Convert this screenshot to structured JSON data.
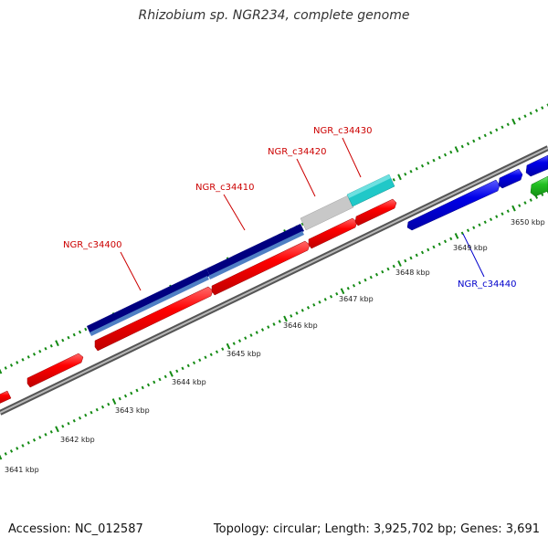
{
  "title": "Rhizobium sp. NGR234, complete genome",
  "footer": {
    "accession": "Accession: NC_012587",
    "stats": "Topology: circular; Length: 3,925,702 bp; Genes: 3,691"
  },
  "gene_labels": {
    "c34400": "NGR_c34400",
    "c34410": "NGR_c34410",
    "c34420": "NGR_c34420",
    "c34430": "NGR_c34430",
    "c34440": "NGR_c34440"
  },
  "ruler": [
    "3641 kbp",
    "3642 kbp",
    "3643 kbp",
    "3644 kbp",
    "3645 kbp",
    "3646 kbp",
    "3647 kbp",
    "3648 kbp",
    "3649 kbp",
    "3650 kbp"
  ],
  "colors": {
    "forward_gene": "#ff0000",
    "reverse_gene": "#0000e0",
    "selected_gene": "#000080",
    "selected_gene_inner": "#4f7fc4",
    "grey_gene": "#c8c8c8",
    "cyan_gene": "#20c8c8",
    "green_gene": "#22c022",
    "tick": "#138a13",
    "axis": "#808080",
    "label_forward": "#cc0000",
    "label_reverse": "#0000cc"
  }
}
